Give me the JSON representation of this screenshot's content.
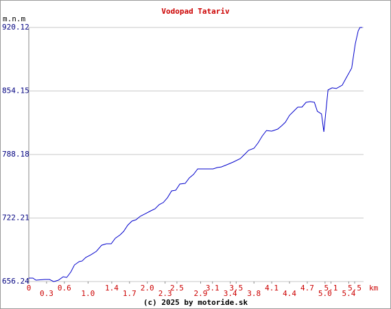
{
  "chart_data": {
    "type": "line",
    "title": "Vodopad Tatariv",
    "y_label": "m.n.m",
    "x_unit": "km",
    "footer": "(c) 2025 by motoride.sk",
    "ylim": [
      656.24,
      920.12
    ],
    "yticks": [
      656.24,
      722.21,
      788.18,
      854.15,
      920.12
    ],
    "xlim": [
      0,
      5.65
    ],
    "xticks": [
      0,
      0.3,
      0.6,
      {
        "value": 1,
        "label": "1.0"
      },
      1.4,
      1.7,
      {
        "value": 2,
        "label": "2.0"
      },
      2.3,
      2.5,
      2.9,
      3.1,
      3.4,
      3.5,
      3.8,
      4.1,
      4.4,
      4.7,
      {
        "value": 5,
        "label": "5.0"
      },
      5.1,
      5.4,
      5.5
    ],
    "grid": true,
    "x": [
      0,
      0.07,
      0.12,
      0.27,
      0.35,
      0.42,
      0.5,
      0.58,
      0.64,
      0.71,
      0.77,
      0.85,
      0.9,
      0.96,
      1.05,
      1.14,
      1.23,
      1.31,
      1.39,
      1.46,
      1.54,
      1.6,
      1.67,
      1.74,
      1.81,
      1.88,
      1.97,
      2.06,
      2.13,
      2.2,
      2.27,
      2.34,
      2.41,
      2.48,
      2.55,
      2.64,
      2.71,
      2.78,
      2.85,
      2.99,
      3.11,
      3.18,
      3.25,
      3.34,
      3.45,
      3.57,
      3.64,
      3.71,
      3.8,
      3.87,
      3.94,
      4.01,
      4.1,
      4.2,
      4.27,
      4.33,
      4.4,
      4.47,
      4.54,
      4.61,
      4.68,
      4.75,
      4.82,
      4.87,
      4.94,
      4.98,
      5.05,
      5.12,
      5.19,
      5.29,
      5.36,
      5.45,
      5.51,
      5.56,
      5.59,
      5.63
    ],
    "series": [
      {
        "color": "#0000cc",
        "values": [
          659.8,
          659.8,
          657.7,
          658.4,
          658.4,
          656.2,
          657.7,
          661.2,
          660.5,
          666.2,
          673.4,
          676.9,
          677.6,
          681.2,
          684.1,
          687.6,
          694.0,
          695.5,
          695.5,
          701.2,
          704.7,
          708.3,
          714.7,
          719.0,
          720.4,
          724.0,
          726.8,
          729.7,
          731.8,
          736.1,
          738.3,
          743.3,
          750.4,
          751.1,
          757.5,
          758.2,
          763.9,
          767.5,
          773.2,
          773.2,
          773.2,
          774.6,
          775.3,
          777.5,
          780.3,
          783.9,
          788.2,
          792.5,
          794.6,
          800.3,
          807.4,
          813.1,
          812.4,
          814.6,
          818.1,
          821.7,
          828.8,
          833.1,
          837.4,
          837.4,
          842.4,
          843.1,
          842.4,
          833.1,
          830.3,
          811.7,
          855.2,
          857.4,
          856.7,
          860.2,
          868.1,
          878.0,
          903.0,
          916.6,
          920.1,
          920.1
        ]
      }
    ],
    "title_color": "#cc0000",
    "ytick_color": "#000080",
    "xtick_color": "#cc0000"
  }
}
